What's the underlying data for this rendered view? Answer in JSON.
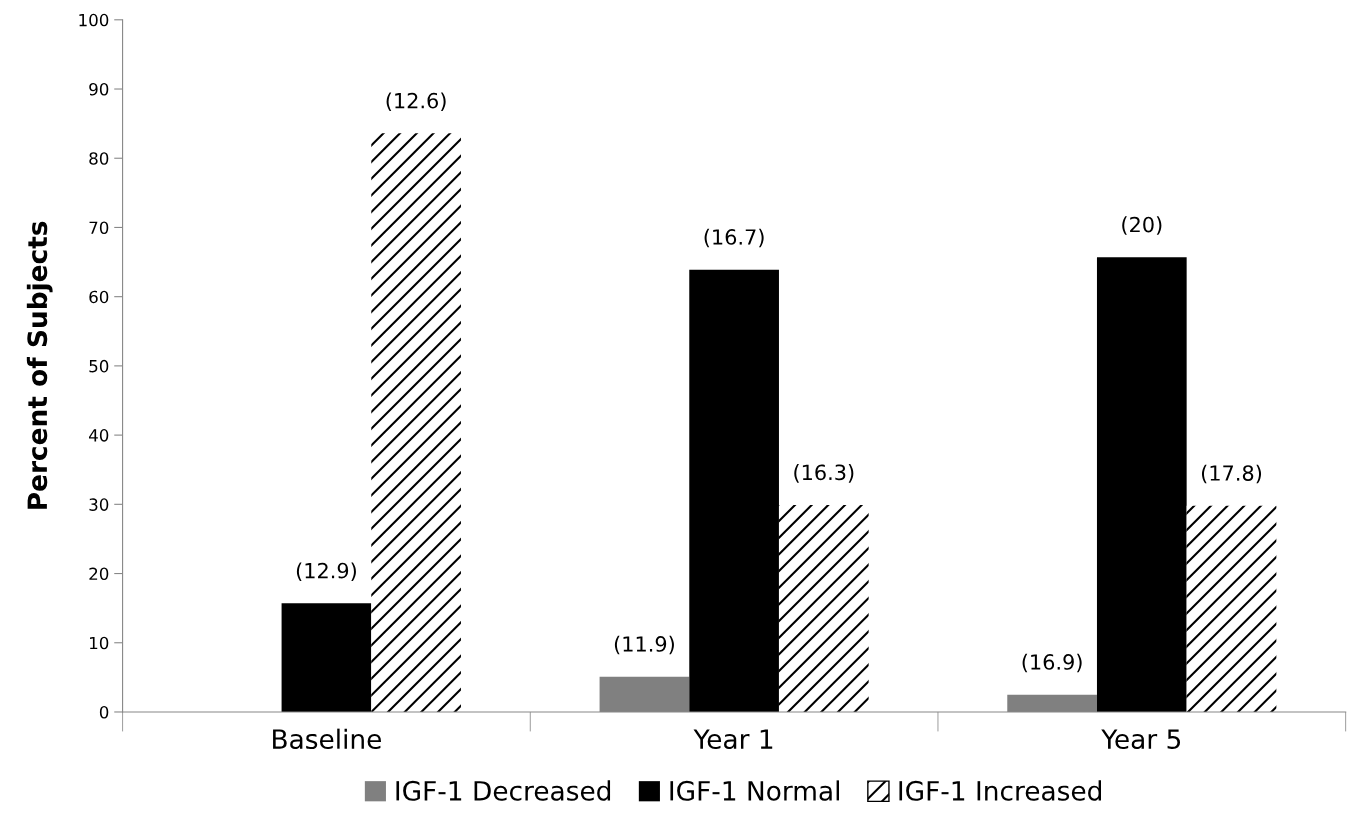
{
  "chart_data": {
    "type": "bar",
    "ylabel": "Percent of Subjects",
    "categories": [
      "Baseline",
      "Year 1",
      "Year 5"
    ],
    "series": [
      {
        "name": "IGF-1 Decreased",
        "color": "#808080",
        "values": [
          0,
          5.1,
          2.5
        ]
      },
      {
        "name": "IGF-1 Normal",
        "color": "#000000",
        "values": [
          15.7,
          63.9,
          65.7
        ]
      },
      {
        "name": "IGF-1 Increased",
        "color": "#ffffff",
        "values": [
          83.6,
          29.9,
          29.8
        ]
      }
    ],
    "annotations": [
      "(12.9)",
      "(12.6)",
      "(11.9)",
      "(16.7)",
      "(16.3)",
      "(16.9)",
      "(20)",
      "(17.8)"
    ],
    "ylim": [
      0,
      100
    ],
    "yticks": [
      0,
      10,
      20,
      30,
      40,
      50,
      60,
      70,
      80,
      90,
      100
    ],
    "grid": false,
    "legend": "bottom"
  }
}
